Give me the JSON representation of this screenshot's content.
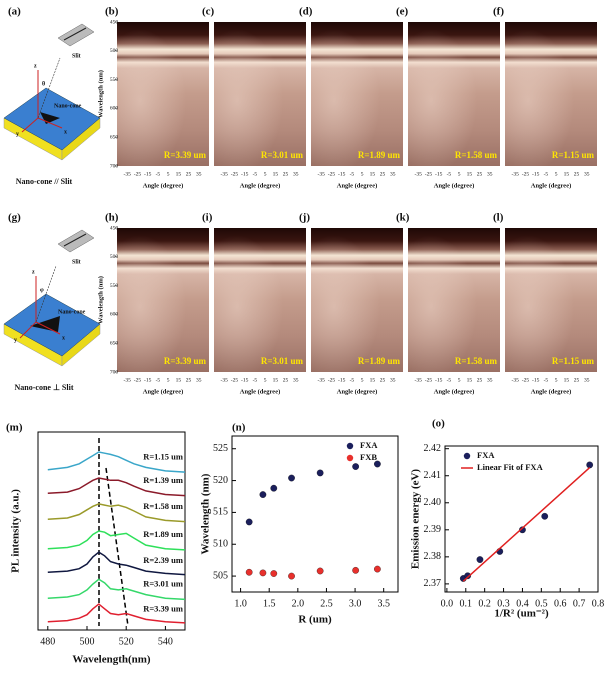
{
  "panels": {
    "labels": [
      "(a)",
      "(b)",
      "(c)",
      "(d)",
      "(e)",
      "(f)",
      "(g)",
      "(h)",
      "(i)",
      "(j)",
      "(k)",
      "(l)"
    ],
    "radius_labels": [
      "R=3.39 um",
      "R=3.01 um",
      "R=1.89 um",
      "R=1.58 um",
      "R=1.15 um"
    ],
    "y_axis_label": "Wavelength (nm)",
    "ylim": [
      450,
      700
    ],
    "yticks": [
      450,
      500,
      550,
      600,
      650,
      700
    ],
    "x_axis_label": "Angle (degree)",
    "xlim": [
      -45,
      45
    ],
    "xticks": [
      -35,
      -25,
      -15,
      -5,
      5,
      15,
      25,
      35
    ],
    "schematic_top": {
      "slit": "Slit",
      "cone": "Nano-cone",
      "angle": "θ",
      "axes": [
        "z",
        "x",
        "y"
      ],
      "caption": "Nano-cone // Slit"
    },
    "schematic_bottom": {
      "slit": "Slit",
      "cone": "Nano-cone",
      "angle": "φ",
      "axes": [
        "z",
        "x",
        "y"
      ],
      "caption": "Nano-cone ⊥ Slit"
    }
  },
  "chart_data": [
    {
      "type": "line",
      "title": "(m)",
      "xlabel": "Wavelength(nm)",
      "ylabel": "PL intensity (a.u.)",
      "x": [
        480,
        490,
        496,
        500,
        503,
        506,
        509,
        512,
        516,
        520,
        524,
        530,
        540,
        550
      ],
      "xlim": [
        475,
        550
      ],
      "xticks": [
        480,
        500,
        520,
        540
      ],
      "ylim": [
        -0.2,
        8.2
      ],
      "legend": "inline",
      "series": [
        {
          "name": "R=1.15 um",
          "color": "#3aa6c9",
          "values": [
            6.6,
            6.7,
            6.85,
            7.05,
            7.2,
            7.35,
            7.3,
            7.25,
            7.15,
            7.0,
            6.85,
            6.7,
            6.55,
            6.5
          ]
        },
        {
          "name": "R=1.39 um",
          "color": "#8b1a2a",
          "values": [
            5.6,
            5.65,
            5.8,
            6.0,
            6.15,
            6.25,
            6.2,
            6.15,
            6.15,
            6.05,
            5.9,
            5.7,
            5.55,
            5.5
          ]
        },
        {
          "name": "R=1.58 um",
          "color": "#9a9a2a",
          "values": [
            4.5,
            4.55,
            4.7,
            4.9,
            5.05,
            5.15,
            5.1,
            5.05,
            5.1,
            5.0,
            4.85,
            4.6,
            4.45,
            4.4
          ]
        },
        {
          "name": "R=1.89 um",
          "color": "#2ee05a",
          "values": [
            3.25,
            3.3,
            3.4,
            3.6,
            3.85,
            4.0,
            3.95,
            3.8,
            3.85,
            3.9,
            3.7,
            3.4,
            3.25,
            3.2
          ]
        },
        {
          "name": "R=2.39 um",
          "color": "#101840",
          "values": [
            2.25,
            2.3,
            2.4,
            2.6,
            2.9,
            3.1,
            2.95,
            2.7,
            2.6,
            2.55,
            2.45,
            2.3,
            2.2,
            2.15
          ]
        },
        {
          "name": "R=3.01 um",
          "color": "#35d86a",
          "values": [
            1.15,
            1.2,
            1.3,
            1.5,
            1.75,
            1.95,
            1.8,
            1.55,
            1.5,
            1.55,
            1.45,
            1.3,
            1.15,
            1.1
          ]
        },
        {
          "name": "R=3.39 um",
          "color": "#e02030",
          "values": [
            0.15,
            0.2,
            0.3,
            0.45,
            0.7,
            0.9,
            0.7,
            0.5,
            0.45,
            0.5,
            0.4,
            0.25,
            0.15,
            0.1
          ]
        }
      ]
    },
    {
      "type": "scatter",
      "title": "(n)",
      "xlabel": "R (um)",
      "ylabel": "Wavelength (nm)",
      "x": [
        1.15,
        1.39,
        1.58,
        1.89,
        2.39,
        3.01,
        3.39
      ],
      "xlim": [
        0.85,
        3.75
      ],
      "xticks": [
        {
          "value": 1,
          "label": "1.0"
        },
        1.5,
        {
          "value": 2,
          "label": "2.0"
        },
        2.5,
        {
          "value": 3,
          "label": "3.0"
        },
        3.5
      ],
      "ylim": [
        502.5,
        527
      ],
      "yticks": [
        505,
        510,
        515,
        520,
        525
      ],
      "legend": "upper right",
      "series": [
        {
          "name": "FXA",
          "color": "#1b1f5c",
          "values": [
            513.5,
            517.8,
            518.8,
            520.4,
            521.2,
            522.2,
            522.6
          ]
        },
        {
          "name": "FXB",
          "color": "#e8302c",
          "values": [
            505.6,
            505.5,
            505.4,
            505.0,
            505.8,
            505.9,
            506.1
          ]
        }
      ]
    },
    {
      "type": "scatter",
      "title": "(o)",
      "xlabel": "1/R² (um⁻²)",
      "ylabel": "Emission energy (eV)",
      "x": [
        0.087,
        0.11,
        0.175,
        0.28,
        0.4,
        0.518,
        0.756
      ],
      "xlim": [
        -0.01,
        0.8
      ],
      "xticks": [
        {
          "value": 0,
          "label": "0.0"
        },
        0.1,
        0.2,
        0.3,
        0.4,
        0.5,
        0.6,
        0.7,
        0.8
      ],
      "ylim": [
        2.367,
        2.421
      ],
      "yticks": [
        2.37,
        2.38,
        2.39,
        {
          "value": 2.4,
          "label": "2.40"
        },
        2.41,
        2.42
      ],
      "legend": "upper left",
      "series": [
        {
          "name": "FXA",
          "color": "#1b1f5c",
          "values": [
            2.372,
            2.373,
            2.379,
            2.382,
            2.39,
            2.395,
            2.414
          ]
        },
        {
          "name": "Linear Fit of FXA",
          "type": "line",
          "color": "#e02020",
          "x": [
            0.087,
            0.756
          ],
          "values": [
            2.371,
            2.413
          ]
        }
      ]
    }
  ]
}
